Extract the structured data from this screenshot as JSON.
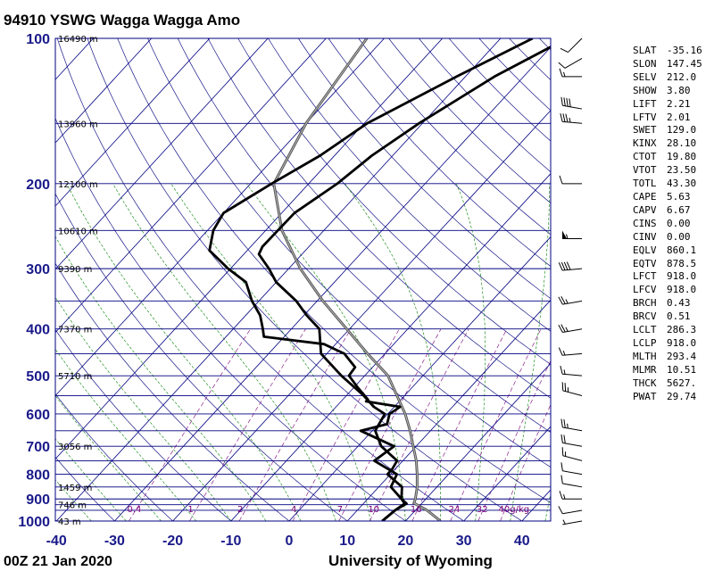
{
  "title": "94910 YSWG Wagga Wagga Amo",
  "footer_left": "00Z 21 Jan 2020",
  "footer_center": "University of Wyoming",
  "chart_data": {
    "type": "skew-t",
    "y_ticks": [
      "100",
      "200",
      "300",
      "400",
      "500",
      "600",
      "700",
      "800",
      "900",
      "1000"
    ],
    "x_ticks": [
      "-40",
      "-30",
      "-20",
      "-10",
      "0",
      "10",
      "20",
      "30",
      "40"
    ],
    "height_labels": [
      "16490 m",
      "13960 m",
      "12100 m",
      "10610 m",
      "9390 m",
      "7370 m",
      "5710 m",
      "3056 m",
      "1459 m",
      "746 m",
      "43 m"
    ],
    "mixing_ratio_labels": [
      "0.4",
      "1",
      "2",
      "4",
      "7",
      "10",
      "16",
      "24",
      "32",
      "40g/kg"
    ],
    "series": [
      {
        "values": [
          [
            100,
            -34.5
          ],
          [
            120,
            -41.5
          ],
          [
            150,
            -49.5
          ],
          [
            175,
            -52.5
          ],
          [
            200,
            -56.4
          ],
          [
            230,
            -60
          ],
          [
            250,
            -59
          ],
          [
            275,
            -56.5
          ],
          [
            300,
            -50.4
          ],
          [
            320,
            -45.2
          ],
          [
            350,
            -41.2
          ],
          [
            375,
            -37.5
          ],
          [
            400,
            -34.9
          ],
          [
            415,
            -33.5
          ],
          [
            430,
            -22
          ],
          [
            450,
            -17
          ],
          [
            480,
            -13
          ],
          [
            500,
            -12.7
          ],
          [
            530,
            -9.2
          ],
          [
            560,
            -5.7
          ],
          [
            565,
            -5.7
          ],
          [
            580,
            1
          ],
          [
            600,
            0.3
          ],
          [
            630,
            1.5
          ],
          [
            650,
            -2
          ],
          [
            700,
            6.2
          ],
          [
            750,
            5.1
          ],
          [
            800,
            11.1
          ],
          [
            850,
            12.1
          ],
          [
            900,
            15.8
          ],
          [
            920,
            17.4
          ],
          [
            950,
            16.5
          ],
          [
            1000,
            16
          ]
        ]
      },
      {
        "values": [
          [
            100,
            -28.6
          ],
          [
            120,
            -35
          ],
          [
            150,
            -40.6
          ],
          [
            175,
            -43.6
          ],
          [
            200,
            -45.1
          ],
          [
            230,
            -47.8
          ],
          [
            250,
            -47.9
          ],
          [
            270,
            -48
          ],
          [
            280,
            -47.4
          ],
          [
            300,
            -43.4
          ],
          [
            320,
            -40
          ],
          [
            350,
            -33.6
          ],
          [
            375,
            -29.5
          ],
          [
            400,
            -25.2
          ],
          [
            450,
            -21
          ],
          [
            500,
            -14
          ],
          [
            550,
            -7
          ],
          [
            580,
            -3.5
          ],
          [
            600,
            -0.5
          ],
          [
            650,
            0.5
          ],
          [
            700,
            4
          ],
          [
            750,
            9
          ],
          [
            780,
            9.5
          ],
          [
            800,
            9.5
          ],
          [
            850,
            14
          ],
          [
            900,
            15.8
          ],
          [
            920,
            17.1
          ],
          [
            950,
            16.5
          ],
          [
            1000,
            16
          ]
        ]
      }
    ],
    "parcel": [
      [
        100,
        -63
      ],
      [
        150,
        -60
      ],
      [
        200,
        -56
      ],
      [
        250,
        -47.2
      ],
      [
        300,
        -38
      ],
      [
        350,
        -29
      ],
      [
        400,
        -20.5
      ],
      [
        450,
        -13
      ],
      [
        500,
        -6
      ],
      [
        550,
        -1.3
      ],
      [
        600,
        3
      ],
      [
        650,
        6.5
      ],
      [
        700,
        9.5
      ],
      [
        750,
        12.3
      ],
      [
        800,
        14.6
      ],
      [
        850,
        16.6
      ],
      [
        900,
        18.2
      ],
      [
        918,
        18.6
      ],
      [
        950,
        22
      ],
      [
        1000,
        26
      ]
    ],
    "wind_barbs": [
      [
        100,
        225,
        10
      ],
      [
        110,
        240,
        10
      ],
      [
        120,
        270,
        15
      ],
      [
        140,
        280,
        40
      ],
      [
        150,
        275,
        35
      ],
      [
        200,
        270,
        10
      ],
      [
        260,
        270,
        55
      ],
      [
        300,
        265,
        40
      ],
      [
        350,
        260,
        25
      ],
      [
        400,
        260,
        25
      ],
      [
        450,
        265,
        15
      ],
      [
        500,
        275,
        15
      ],
      [
        550,
        285,
        25
      ],
      [
        650,
        280,
        25
      ],
      [
        700,
        280,
        20
      ],
      [
        750,
        285,
        15
      ],
      [
        800,
        280,
        10
      ],
      [
        850,
        280,
        10
      ],
      [
        900,
        270,
        15
      ],
      [
        950,
        260,
        10
      ],
      [
        1000,
        260,
        5
      ]
    ]
  },
  "indices": [
    {
      "key": "SLAT",
      "val": "-35.16"
    },
    {
      "key": "SLON",
      "val": "147.45"
    },
    {
      "key": "SELV",
      "val": "212.0"
    },
    {
      "key": "SHOW",
      "val": "3.80"
    },
    {
      "key": "LIFT",
      "val": "2.21"
    },
    {
      "key": "LFTV",
      "val": "2.01"
    },
    {
      "key": "SWET",
      "val": "129.0"
    },
    {
      "key": "KINX",
      "val": "28.10"
    },
    {
      "key": "CTOT",
      "val": "19.80"
    },
    {
      "key": "VTOT",
      "val": "23.50"
    },
    {
      "key": "TOTL",
      "val": "43.30"
    },
    {
      "key": "CAPE",
      "val": "5.63"
    },
    {
      "key": "CAPV",
      "val": "6.67"
    },
    {
      "key": "CINS",
      "val": "0.00"
    },
    {
      "key": "CINV",
      "val": "0.00"
    },
    {
      "key": "EQLV",
      "val": "860.1"
    },
    {
      "key": "EQTV",
      "val": "878.5"
    },
    {
      "key": "LFCT",
      "val": "918.0"
    },
    {
      "key": "LFCV",
      "val": "918.0"
    },
    {
      "key": "BRCH",
      "val": "0.43"
    },
    {
      "key": "BRCV",
      "val": "0.51"
    },
    {
      "key": "LCLT",
      "val": "286.3"
    },
    {
      "key": "LCLP",
      "val": "918.0"
    },
    {
      "key": "MLTH",
      "val": "293.4"
    },
    {
      "key": "MLMR",
      "val": "10.51"
    },
    {
      "key": "THCK",
      "val": "5627."
    },
    {
      "key": "PWAT",
      "val": "29.74"
    }
  ]
}
